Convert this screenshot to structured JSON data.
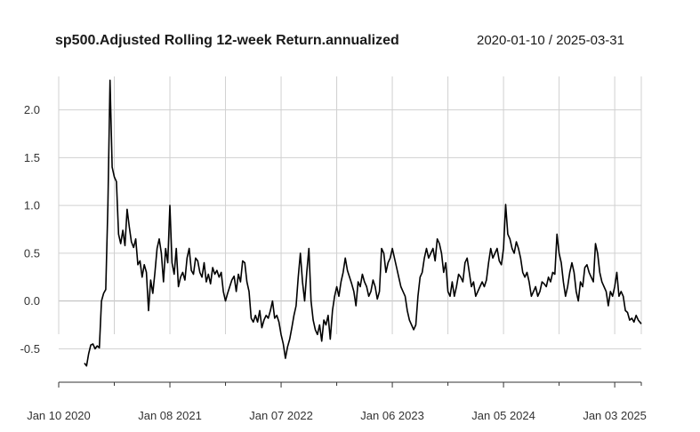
{
  "chart_data": {
    "type": "line",
    "title": "sp500.Adjusted Rolling 12-week Return.annualized",
    "date_range": "2020-01-10 / 2025-03-31",
    "xlabel": "",
    "ylabel": "",
    "x_range": [
      "2020-01-10",
      "2025-03-31"
    ],
    "ylim": [
      -0.85,
      2.35
    ],
    "y_ticks": [
      -0.5,
      0.0,
      0.5,
      1.0,
      1.5,
      2.0
    ],
    "y_tick_labels": [
      "-0.5",
      "0.0",
      "0.5",
      "1.0",
      "1.5",
      "2.0"
    ],
    "x_tick_labels": [
      {
        "date": "2020-01-10",
        "label": "Jan 10 2020"
      },
      {
        "date": "2021-01-08",
        "label": "Jan 08 2021"
      },
      {
        "date": "2022-01-07",
        "label": "Jan 07 2022"
      },
      {
        "date": "2023-01-06",
        "label": "Jan 06 2023"
      },
      {
        "date": "2024-01-05",
        "label": "Jan 05 2024"
      },
      {
        "date": "2025-01-03",
        "label": "Jan 03 2025"
      }
    ],
    "x_minor_ticks": [
      "2020-07-10",
      "2021-07-09",
      "2022-07-08",
      "2023-07-07",
      "2024-07-05",
      "2025-03-31"
    ],
    "grid": true,
    "line_color": "#000000",
    "series": [
      {
        "values": [
          [
            "2020-04-03",
            -0.65
          ],
          [
            "2020-04-10",
            -0.68
          ],
          [
            "2020-04-17",
            -0.55
          ],
          [
            "2020-04-24",
            -0.46
          ],
          [
            "2020-05-01",
            -0.45
          ],
          [
            "2020-05-08",
            -0.5
          ],
          [
            "2020-05-15",
            -0.47
          ],
          [
            "2020-05-22",
            -0.49
          ],
          [
            "2020-05-29",
            0.0
          ],
          [
            "2020-06-05",
            0.08
          ],
          [
            "2020-06-12",
            0.12
          ],
          [
            "2020-06-19",
            1.0
          ],
          [
            "2020-06-26",
            2.31
          ],
          [
            "2020-07-03",
            1.4
          ],
          [
            "2020-07-10",
            1.3
          ],
          [
            "2020-07-17",
            1.25
          ],
          [
            "2020-07-24",
            0.7
          ],
          [
            "2020-07-31",
            0.6
          ],
          [
            "2020-08-07",
            0.74
          ],
          [
            "2020-08-14",
            0.58
          ],
          [
            "2020-08-21",
            0.96
          ],
          [
            "2020-08-28",
            0.78
          ],
          [
            "2020-09-04",
            0.62
          ],
          [
            "2020-09-11",
            0.56
          ],
          [
            "2020-09-18",
            0.65
          ],
          [
            "2020-09-25",
            0.38
          ],
          [
            "2020-10-02",
            0.42
          ],
          [
            "2020-10-09",
            0.25
          ],
          [
            "2020-10-16",
            0.38
          ],
          [
            "2020-10-23",
            0.3
          ],
          [
            "2020-10-30",
            -0.1
          ],
          [
            "2020-11-06",
            0.22
          ],
          [
            "2020-11-13",
            0.08
          ],
          [
            "2020-11-20",
            0.3
          ],
          [
            "2020-11-27",
            0.55
          ],
          [
            "2020-12-04",
            0.65
          ],
          [
            "2020-12-11",
            0.5
          ],
          [
            "2020-12-18",
            0.2
          ],
          [
            "2020-12-25",
            0.55
          ],
          [
            "2021-01-01",
            0.4
          ],
          [
            "2021-01-08",
            1.0
          ],
          [
            "2021-01-15",
            0.4
          ],
          [
            "2021-01-22",
            0.28
          ],
          [
            "2021-01-29",
            0.55
          ],
          [
            "2021-02-05",
            0.15
          ],
          [
            "2021-02-12",
            0.25
          ],
          [
            "2021-02-19",
            0.3
          ],
          [
            "2021-02-26",
            0.22
          ],
          [
            "2021-03-05",
            0.45
          ],
          [
            "2021-03-12",
            0.55
          ],
          [
            "2021-03-19",
            0.32
          ],
          [
            "2021-03-26",
            0.28
          ],
          [
            "2021-04-02",
            0.45
          ],
          [
            "2021-04-09",
            0.42
          ],
          [
            "2021-04-16",
            0.3
          ],
          [
            "2021-04-23",
            0.25
          ],
          [
            "2021-04-30",
            0.4
          ],
          [
            "2021-05-07",
            0.2
          ],
          [
            "2021-05-14",
            0.28
          ],
          [
            "2021-05-21",
            0.18
          ],
          [
            "2021-05-28",
            0.35
          ],
          [
            "2021-06-04",
            0.28
          ],
          [
            "2021-06-11",
            0.32
          ],
          [
            "2021-06-18",
            0.25
          ],
          [
            "2021-06-25",
            0.3
          ],
          [
            "2021-07-02",
            0.1
          ],
          [
            "2021-07-09",
            0.0
          ],
          [
            "2021-07-16",
            0.08
          ],
          [
            "2021-07-23",
            0.15
          ],
          [
            "2021-07-30",
            0.22
          ],
          [
            "2021-08-06",
            0.26
          ],
          [
            "2021-08-13",
            0.1
          ],
          [
            "2021-08-20",
            0.28
          ],
          [
            "2021-08-27",
            0.2
          ],
          [
            "2021-09-03",
            0.42
          ],
          [
            "2021-09-10",
            0.4
          ],
          [
            "2021-09-17",
            0.2
          ],
          [
            "2021-09-24",
            0.1
          ],
          [
            "2021-10-01",
            -0.18
          ],
          [
            "2021-10-08",
            -0.22
          ],
          [
            "2021-10-15",
            -0.15
          ],
          [
            "2021-10-22",
            -0.22
          ],
          [
            "2021-10-29",
            -0.1
          ],
          [
            "2021-11-05",
            -0.28
          ],
          [
            "2021-11-12",
            -0.2
          ],
          [
            "2021-11-19",
            -0.15
          ],
          [
            "2021-11-26",
            -0.18
          ],
          [
            "2021-12-03",
            -0.1
          ],
          [
            "2021-12-10",
            0.0
          ],
          [
            "2021-12-17",
            -0.18
          ],
          [
            "2021-12-24",
            -0.15
          ],
          [
            "2021-12-31",
            -0.22
          ],
          [
            "2022-01-07",
            -0.35
          ],
          [
            "2022-01-14",
            -0.45
          ],
          [
            "2022-01-21",
            -0.6
          ],
          [
            "2022-01-28",
            -0.48
          ],
          [
            "2022-02-04",
            -0.4
          ],
          [
            "2022-02-11",
            -0.28
          ],
          [
            "2022-02-18",
            -0.15
          ],
          [
            "2022-02-25",
            -0.05
          ],
          [
            "2022-03-04",
            0.25
          ],
          [
            "2022-03-11",
            0.5
          ],
          [
            "2022-03-18",
            0.2
          ],
          [
            "2022-03-25",
            0.0
          ],
          [
            "2022-04-01",
            0.3
          ],
          [
            "2022-04-08",
            0.55
          ],
          [
            "2022-04-15",
            0.0
          ],
          [
            "2022-04-22",
            -0.2
          ],
          [
            "2022-04-29",
            -0.3
          ],
          [
            "2022-05-06",
            -0.35
          ],
          [
            "2022-05-13",
            -0.25
          ],
          [
            "2022-05-20",
            -0.42
          ],
          [
            "2022-05-27",
            -0.2
          ],
          [
            "2022-06-03",
            -0.25
          ],
          [
            "2022-06-10",
            -0.15
          ],
          [
            "2022-06-17",
            -0.4
          ],
          [
            "2022-06-24",
            -0.1
          ],
          [
            "2022-07-01",
            0.05
          ],
          [
            "2022-07-08",
            0.15
          ],
          [
            "2022-07-15",
            0.05
          ],
          [
            "2022-07-22",
            0.2
          ],
          [
            "2022-07-29",
            0.3
          ],
          [
            "2022-08-05",
            0.45
          ],
          [
            "2022-08-12",
            0.32
          ],
          [
            "2022-08-19",
            0.25
          ],
          [
            "2022-08-26",
            0.18
          ],
          [
            "2022-09-02",
            0.1
          ],
          [
            "2022-09-09",
            -0.05
          ],
          [
            "2022-09-16",
            0.2
          ],
          [
            "2022-09-23",
            0.15
          ],
          [
            "2022-09-30",
            0.28
          ],
          [
            "2022-10-07",
            0.2
          ],
          [
            "2022-10-14",
            0.15
          ],
          [
            "2022-10-21",
            0.05
          ],
          [
            "2022-10-28",
            0.1
          ],
          [
            "2022-11-04",
            0.22
          ],
          [
            "2022-11-11",
            0.15
          ],
          [
            "2022-11-18",
            0.02
          ],
          [
            "2022-11-25",
            0.1
          ],
          [
            "2022-12-02",
            0.55
          ],
          [
            "2022-12-09",
            0.5
          ],
          [
            "2022-12-16",
            0.3
          ],
          [
            "2022-12-23",
            0.4
          ],
          [
            "2022-12-30",
            0.45
          ],
          [
            "2023-01-06",
            0.55
          ],
          [
            "2023-01-13",
            0.45
          ],
          [
            "2023-01-20",
            0.35
          ],
          [
            "2023-01-27",
            0.25
          ],
          [
            "2023-02-03",
            0.15
          ],
          [
            "2023-02-10",
            0.1
          ],
          [
            "2023-02-17",
            0.05
          ],
          [
            "2023-02-24",
            -0.1
          ],
          [
            "2023-03-03",
            -0.2
          ],
          [
            "2023-03-10",
            -0.25
          ],
          [
            "2023-03-17",
            -0.3
          ],
          [
            "2023-03-24",
            -0.25
          ],
          [
            "2023-03-31",
            0.05
          ],
          [
            "2023-04-07",
            0.25
          ],
          [
            "2023-04-14",
            0.3
          ],
          [
            "2023-04-21",
            0.45
          ],
          [
            "2023-04-28",
            0.55
          ],
          [
            "2023-05-05",
            0.45
          ],
          [
            "2023-05-12",
            0.5
          ],
          [
            "2023-05-19",
            0.55
          ],
          [
            "2023-05-26",
            0.42
          ],
          [
            "2023-06-02",
            0.65
          ],
          [
            "2023-06-09",
            0.6
          ],
          [
            "2023-06-16",
            0.5
          ],
          [
            "2023-06-23",
            0.3
          ],
          [
            "2023-06-30",
            0.4
          ],
          [
            "2023-07-07",
            0.1
          ],
          [
            "2023-07-14",
            0.05
          ],
          [
            "2023-07-21",
            0.2
          ],
          [
            "2023-07-28",
            0.05
          ],
          [
            "2023-08-04",
            0.15
          ],
          [
            "2023-08-11",
            0.28
          ],
          [
            "2023-08-18",
            0.25
          ],
          [
            "2023-08-25",
            0.2
          ],
          [
            "2023-09-01",
            0.4
          ],
          [
            "2023-09-08",
            0.45
          ],
          [
            "2023-09-15",
            0.3
          ],
          [
            "2023-09-22",
            0.15
          ],
          [
            "2023-09-29",
            0.2
          ],
          [
            "2023-10-06",
            0.05
          ],
          [
            "2023-10-13",
            0.1
          ],
          [
            "2023-10-20",
            0.15
          ],
          [
            "2023-10-27",
            0.2
          ],
          [
            "2023-11-03",
            0.15
          ],
          [
            "2023-11-10",
            0.22
          ],
          [
            "2023-11-17",
            0.4
          ],
          [
            "2023-11-24",
            0.55
          ],
          [
            "2023-12-01",
            0.45
          ],
          [
            "2023-12-08",
            0.5
          ],
          [
            "2023-12-15",
            0.55
          ],
          [
            "2023-12-22",
            0.42
          ],
          [
            "2023-12-29",
            0.38
          ],
          [
            "2024-01-05",
            0.55
          ],
          [
            "2024-01-12",
            1.01
          ],
          [
            "2024-01-19",
            0.7
          ],
          [
            "2024-01-26",
            0.65
          ],
          [
            "2024-02-02",
            0.55
          ],
          [
            "2024-02-09",
            0.5
          ],
          [
            "2024-02-16",
            0.62
          ],
          [
            "2024-02-23",
            0.55
          ],
          [
            "2024-03-01",
            0.45
          ],
          [
            "2024-03-08",
            0.3
          ],
          [
            "2024-03-15",
            0.25
          ],
          [
            "2024-03-22",
            0.3
          ],
          [
            "2024-03-29",
            0.2
          ],
          [
            "2024-04-05",
            0.05
          ],
          [
            "2024-04-12",
            0.1
          ],
          [
            "2024-04-19",
            0.15
          ],
          [
            "2024-04-26",
            0.05
          ],
          [
            "2024-05-03",
            0.1
          ],
          [
            "2024-05-10",
            0.2
          ],
          [
            "2024-05-17",
            0.18
          ],
          [
            "2024-05-24",
            0.15
          ],
          [
            "2024-05-31",
            0.25
          ],
          [
            "2024-06-07",
            0.2
          ],
          [
            "2024-06-14",
            0.3
          ],
          [
            "2024-06-21",
            0.28
          ],
          [
            "2024-06-28",
            0.7
          ],
          [
            "2024-07-05",
            0.5
          ],
          [
            "2024-07-12",
            0.4
          ],
          [
            "2024-07-19",
            0.2
          ],
          [
            "2024-07-26",
            0.05
          ],
          [
            "2024-08-02",
            0.15
          ],
          [
            "2024-08-09",
            0.3
          ],
          [
            "2024-08-16",
            0.4
          ],
          [
            "2024-08-23",
            0.3
          ],
          [
            "2024-08-30",
            0.1
          ],
          [
            "2024-09-06",
            0.0
          ],
          [
            "2024-09-13",
            0.2
          ],
          [
            "2024-09-20",
            0.15
          ],
          [
            "2024-09-27",
            0.35
          ],
          [
            "2024-10-04",
            0.38
          ],
          [
            "2024-10-11",
            0.3
          ],
          [
            "2024-10-18",
            0.25
          ],
          [
            "2024-10-25",
            0.2
          ],
          [
            "2024-11-01",
            0.6
          ],
          [
            "2024-11-08",
            0.5
          ],
          [
            "2024-11-15",
            0.3
          ],
          [
            "2024-11-22",
            0.2
          ],
          [
            "2024-11-29",
            0.15
          ],
          [
            "2024-12-06",
            0.1
          ],
          [
            "2024-12-13",
            -0.05
          ],
          [
            "2024-12-20",
            0.1
          ],
          [
            "2024-12-27",
            0.05
          ],
          [
            "2025-01-03",
            0.15
          ],
          [
            "2025-01-10",
            0.3
          ],
          [
            "2025-01-17",
            0.05
          ],
          [
            "2025-01-24",
            0.1
          ],
          [
            "2025-01-31",
            0.05
          ],
          [
            "2025-02-07",
            -0.1
          ],
          [
            "2025-02-14",
            -0.12
          ],
          [
            "2025-02-21",
            -0.2
          ],
          [
            "2025-02-28",
            -0.18
          ],
          [
            "2025-03-07",
            -0.22
          ],
          [
            "2025-03-14",
            -0.15
          ],
          [
            "2025-03-21",
            -0.2
          ],
          [
            "2025-03-31",
            -0.24
          ]
        ]
      }
    ]
  }
}
